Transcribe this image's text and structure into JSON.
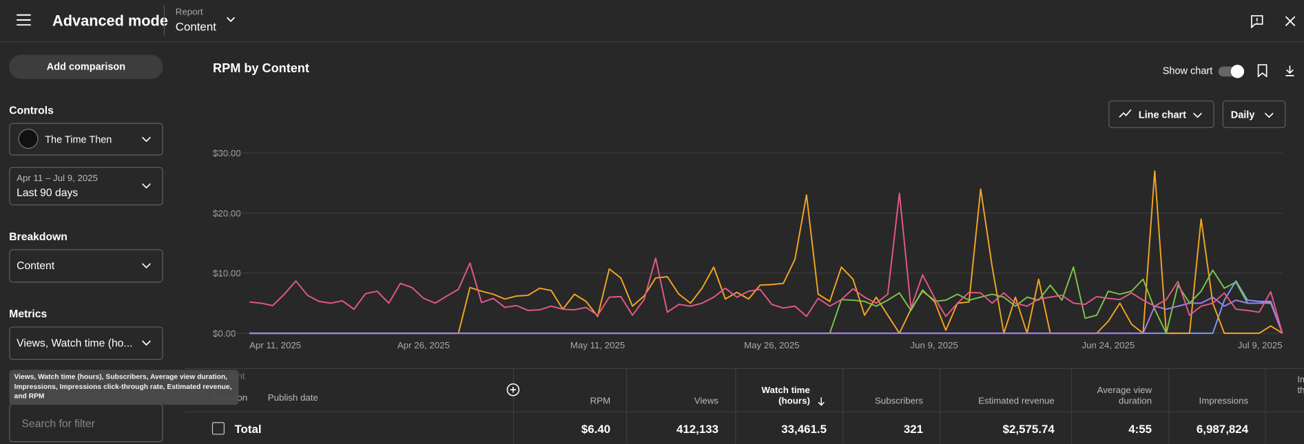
{
  "header": {
    "title": "Advanced mode",
    "report_label": "Report",
    "report_value": "Content"
  },
  "sidebar": {
    "add_comparison": "Add comparison",
    "controls_heading": "Controls",
    "channel": "The Time Then",
    "date_range": "Apr 11 – Jul 9, 2025",
    "period": "Last 90 days",
    "breakdown_heading": "Breakdown",
    "breakdown": "Content",
    "metrics_heading": "Metrics",
    "metrics": "Views, Watch time (ho...",
    "metrics_tooltip": "Views, Watch time (hours), Subscribers, Average view duration, Impressions, Impressions click-through rate, Estimated revenue, and RPM",
    "search_placeholder": "Search for filter"
  },
  "toolbar": {
    "show_chart": "Show chart",
    "chart_type": "Line chart",
    "interval": "Daily"
  },
  "chart_data": {
    "type": "line",
    "title": "RPM by Content",
    "xlim": [
      0,
      89
    ],
    "xticks": [
      {
        "value": 0,
        "label": "Apr 11, 2025"
      },
      {
        "value": 15,
        "label": "Apr 26, 2025"
      },
      {
        "value": 30,
        "label": "May 11, 2025"
      },
      {
        "value": 45,
        "label": "May 26, 2025"
      },
      {
        "value": 59,
        "label": "Jun 9, 2025"
      },
      {
        "value": 74,
        "label": "Jun 24, 2025"
      },
      {
        "value": 89,
        "label": "Jul 9, 2025"
      }
    ],
    "ylim": [
      0,
      30
    ],
    "yticks": [
      {
        "value": 0,
        "label": "$0.00"
      },
      {
        "value": 10,
        "label": "$10.00"
      },
      {
        "value": 20,
        "label": "$20.00"
      },
      {
        "value": 30,
        "label": "$30.00"
      }
    ],
    "grid": true,
    "series": [
      {
        "color": "#7b9cff",
        "values": [
          0,
          0,
          0,
          0,
          0,
          0,
          0,
          0,
          0,
          0,
          0,
          0,
          0,
          0,
          0,
          0,
          0,
          0,
          0,
          0,
          0,
          0,
          0,
          0,
          0,
          0,
          0,
          0,
          0,
          0,
          0,
          0,
          0,
          0,
          0,
          0,
          0,
          0,
          0,
          0,
          0,
          0,
          0,
          0,
          0,
          0,
          0,
          0,
          0,
          0,
          0,
          0,
          0,
          0,
          0,
          0,
          0,
          0,
          0,
          0,
          0,
          0,
          0,
          0,
          0,
          0,
          0,
          0,
          0,
          0,
          0,
          0,
          0,
          0,
          0,
          0,
          0,
          0,
          0,
          0,
          0,
          0,
          0,
          0,
          5.5,
          8.7,
          5.5,
          5.3,
          5.3,
          0
        ]
      },
      {
        "color": "#f5a623",
        "values": [
          0,
          0,
          0,
          0,
          0,
          0,
          0,
          0,
          0,
          0,
          0,
          0,
          0,
          0,
          0,
          0,
          0,
          0,
          0,
          7.6,
          7,
          6.5,
          5.7,
          6.2,
          6.3,
          7.5,
          7.1,
          4,
          6.5,
          5.3,
          2.8,
          10.7,
          9.2,
          4.5,
          6.2,
          9.2,
          9.4,
          6.5,
          5,
          7.5,
          11,
          5.7,
          6.8,
          5.7,
          8,
          8.1,
          8.3,
          12.3,
          23,
          6.5,
          5.3,
          11,
          9,
          3,
          6,
          3,
          0,
          4,
          7,
          5.5,
          0.5,
          5,
          5.2,
          24,
          11,
          0,
          6,
          0,
          9,
          0,
          0,
          0,
          0,
          0,
          2,
          5,
          1.5,
          0,
          27,
          0,
          0,
          0,
          19,
          5,
          0,
          0,
          0,
          0,
          1.2,
          0
        ]
      },
      {
        "color": "#7cc74b",
        "values": [
          0,
          0,
          0,
          0,
          0,
          0,
          0,
          0,
          0,
          0,
          0,
          0,
          0,
          0,
          0,
          0,
          0,
          0,
          0,
          0,
          0,
          0,
          0,
          0,
          0,
          0,
          0,
          0,
          0,
          0,
          0,
          0,
          0,
          0,
          0,
          0,
          0,
          0,
          0,
          0,
          0,
          0,
          0,
          0,
          0,
          0,
          0,
          0,
          0,
          0,
          0,
          5.6,
          5.5,
          5.3,
          4.5,
          5.5,
          6.7,
          3.8,
          7.2,
          5.3,
          5.5,
          6.5,
          5.5,
          6,
          6.5,
          6,
          4.5,
          6,
          5.5,
          8,
          5.5,
          11,
          2.5,
          3,
          7,
          6.5,
          7,
          9,
          4,
          0,
          8,
          5,
          7,
          10.5,
          7.5,
          8.5,
          5,
          5,
          5,
          0
        ]
      },
      {
        "color": "#a97cf7",
        "values": [
          0,
          0,
          0,
          0,
          0,
          0,
          0,
          0,
          0,
          0,
          0,
          0,
          0,
          0,
          0,
          0,
          0,
          0,
          0,
          0,
          0,
          0,
          0,
          0,
          0,
          0,
          0,
          0,
          0,
          0,
          0,
          0,
          0,
          0,
          0,
          0,
          0,
          0,
          0,
          0,
          0,
          0,
          0,
          0,
          0,
          0,
          0,
          0,
          0,
          0,
          0,
          0,
          0,
          0,
          0,
          0,
          0,
          0,
          0,
          0,
          0,
          0,
          0,
          0,
          0,
          0,
          0,
          0,
          0,
          0,
          0,
          0,
          0,
          0,
          0,
          0,
          0,
          0,
          4.5,
          4,
          4.5,
          5,
          5,
          6,
          4.5,
          5.5,
          5,
          5,
          5.2,
          0
        ]
      },
      {
        "color": "#e8588a",
        "values": [
          5.2,
          5,
          4.6,
          6.5,
          8.7,
          6.3,
          5.3,
          5,
          5.4,
          4,
          6.6,
          7,
          5,
          8.3,
          7.6,
          5.8,
          5,
          6.2,
          7.3,
          11.7,
          5.1,
          5.8,
          4.3,
          4.6,
          3.8,
          3.9,
          4.5,
          4,
          3.9,
          4.3,
          3,
          6,
          6.1,
          3,
          5.6,
          12.5,
          3.5,
          4.8,
          4.5,
          5,
          6,
          7.5,
          6,
          7,
          7.3,
          4.8,
          4.2,
          4.5,
          2.8,
          5.8,
          4.5,
          5.6,
          7.4,
          6,
          5,
          6.5,
          23.3,
          4.2,
          9.7,
          6,
          2.8,
          5,
          6.8,
          6.7,
          5,
          6.7,
          5,
          4.5,
          5.7,
          6,
          6.3,
          5,
          4.8,
          6.1,
          5.8,
          5.6,
          6.7,
          5.5,
          4.5,
          5.6,
          8.6,
          3,
          4.5,
          5,
          6.7,
          4,
          3.8,
          3.5,
          6.9,
          0
        ]
      }
    ]
  },
  "table": {
    "columns": [
      "Content",
      "Duration",
      "Publish date",
      "RPM",
      "Views",
      "Watch time (hours)",
      "Subscribers",
      "Estimated revenue",
      "Average view duration",
      "Impressions",
      "Impressions click-through rate"
    ],
    "total": {
      "label": "Total",
      "values": [
        "$6.40",
        "412,133",
        "33,461.5",
        "321",
        "$2,575.74",
        "4:55",
        "6,987,824"
      ]
    }
  }
}
